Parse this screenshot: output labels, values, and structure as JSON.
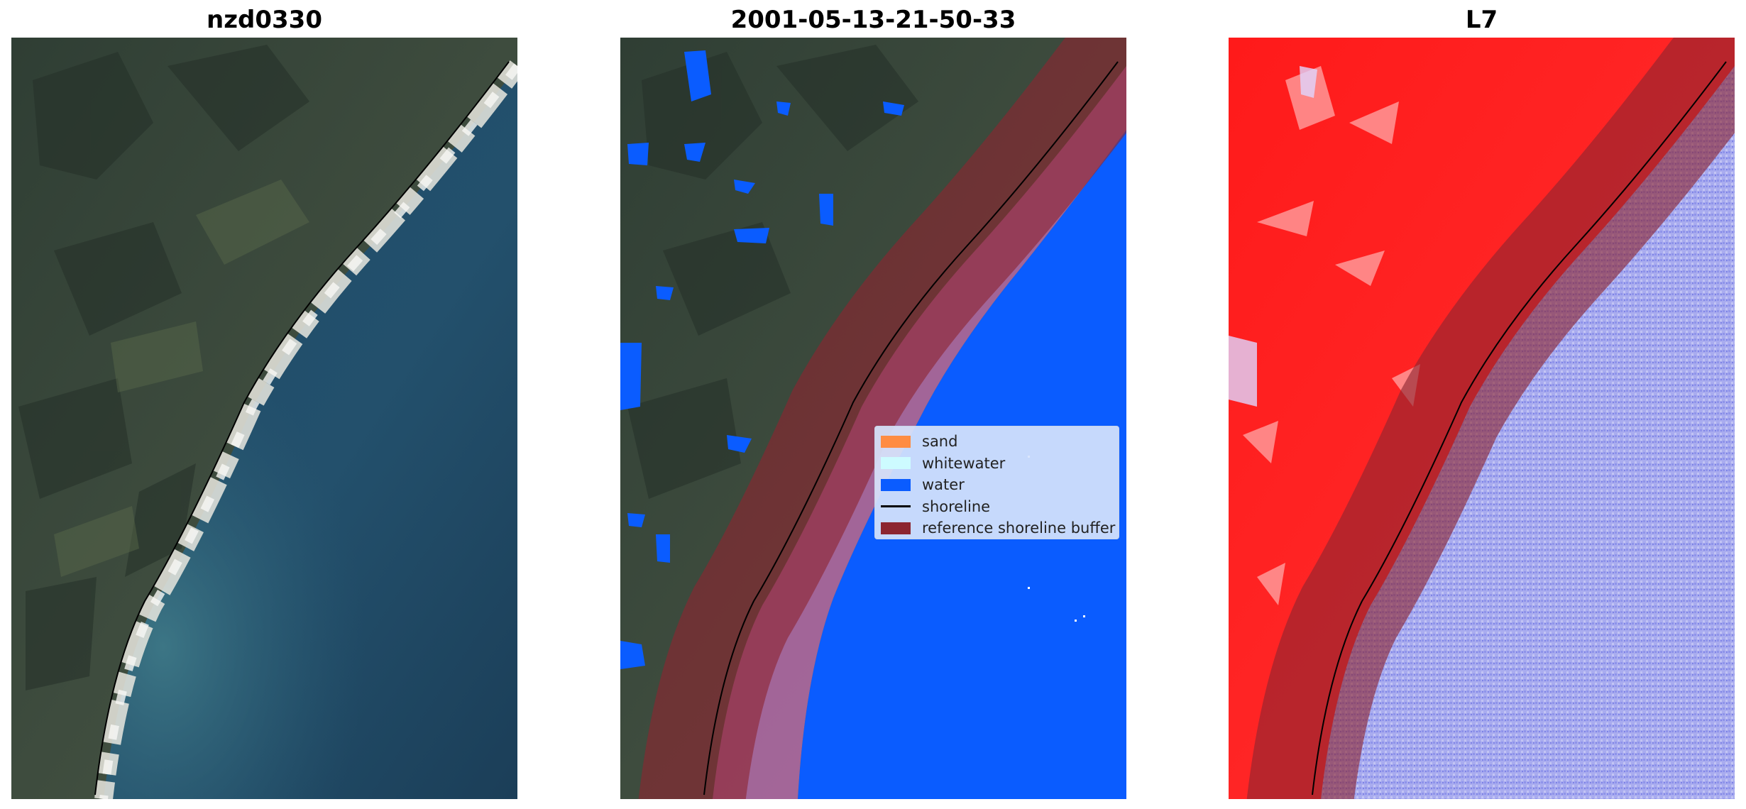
{
  "panels": [
    {
      "title": "nzd0330"
    },
    {
      "title": "2001-05-13-21-50-33"
    },
    {
      "title": "L7"
    }
  ],
  "legend": {
    "items": [
      {
        "label": "sand",
        "color": "#ff8c42"
      },
      {
        "label": "whitewater",
        "color": "#cdfbff"
      },
      {
        "label": "water",
        "color": "#0a5cff"
      },
      {
        "label": "shoreline",
        "color": "#000000"
      },
      {
        "label": "reference shoreline buffer",
        "color": "#8c2530"
      }
    ]
  }
}
